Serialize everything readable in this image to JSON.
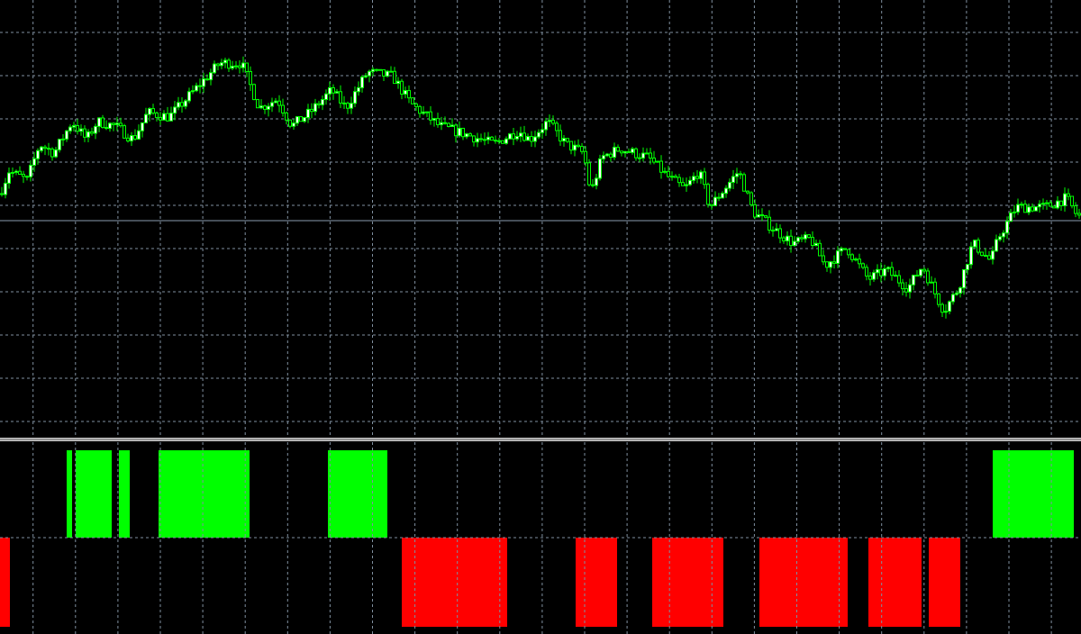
{
  "chart_data": [
    {
      "type": "candlestick",
      "title": "",
      "xlabel": "",
      "ylabel": "",
      "x_unit": "bar index",
      "xlim": [
        0,
        300
      ],
      "ylim": [
        1.1513,
        1.2
      ],
      "grid": true,
      "current_price_line": 1.1755,
      "close_path": [
        [
          0,
          1.1785
        ],
        [
          2.5,
          1.181
        ],
        [
          7.5,
          1.18
        ],
        [
          11,
          1.184
        ],
        [
          15,
          1.183
        ],
        [
          20,
          1.1865
        ],
        [
          24,
          1.1845
        ],
        [
          27,
          1.1865
        ],
        [
          32,
          1.186
        ],
        [
          37,
          1.1845
        ],
        [
          41,
          1.1875
        ],
        [
          47,
          1.187
        ],
        [
          54,
          1.19
        ],
        [
          61,
          1.193
        ],
        [
          67,
          1.193
        ],
        [
          72,
          1.188
        ],
        [
          77,
          1.189
        ],
        [
          81,
          1.186
        ],
        [
          86,
          1.1875
        ],
        [
          92,
          1.19
        ],
        [
          96,
          1.188
        ],
        [
          102,
          1.192
        ],
        [
          109,
          1.1915
        ],
        [
          114,
          1.1885
        ],
        [
          122,
          1.186
        ],
        [
          130,
          1.185
        ],
        [
          137,
          1.184
        ],
        [
          144,
          1.1855
        ],
        [
          147,
          1.1845
        ],
        [
          152,
          1.1865
        ],
        [
          157,
          1.184
        ],
        [
          162,
          1.183
        ],
        [
          164,
          1.1785
        ],
        [
          167,
          1.1825
        ],
        [
          172,
          1.1835
        ],
        [
          180,
          1.1825
        ],
        [
          185,
          1.1805
        ],
        [
          190,
          1.179
        ],
        [
          194,
          1.181
        ],
        [
          197,
          1.177
        ],
        [
          205,
          1.181
        ],
        [
          209,
          1.1765
        ],
        [
          215,
          1.1745
        ],
        [
          220,
          1.173
        ],
        [
          225,
          1.1735
        ],
        [
          229,
          1.1705
        ],
        [
          235,
          1.1725
        ],
        [
          241,
          1.169
        ],
        [
          246,
          1.17
        ],
        [
          252,
          1.168
        ],
        [
          256,
          1.1705
        ],
        [
          260,
          1.167
        ],
        [
          262,
          1.1655
        ],
        [
          266,
          1.168
        ],
        [
          270,
          1.173
        ],
        [
          275,
          1.171
        ],
        [
          277,
          1.1735
        ],
        [
          282,
          1.177
        ],
        [
          290,
          1.177
        ],
        [
          296,
          1.178
        ],
        [
          299,
          1.176
        ]
      ],
      "colors": {
        "background": "#000000",
        "candle": "#00ff00",
        "bull_body": "#ffffff",
        "bear_body": "#000000",
        "grid": "#8090a0",
        "price_line": "#8a9bb0"
      }
    },
    {
      "type": "histogram",
      "title": "",
      "ylim": [
        -1,
        1
      ],
      "grid": true,
      "segments": [
        {
          "from": 18.5,
          "to": 20,
          "value": 1
        },
        {
          "from": 21,
          "to": 31,
          "value": 1
        },
        {
          "from": 33,
          "to": 36,
          "value": 1
        },
        {
          "from": 44,
          "to": 69.25,
          "value": 1
        },
        {
          "from": 91,
          "to": 107.5,
          "value": 1
        },
        {
          "from": 275.5,
          "to": 298,
          "value": 1
        },
        {
          "from": 0,
          "to": 2.75,
          "value": -1
        },
        {
          "from": 111.5,
          "to": 140.75,
          "value": -1
        },
        {
          "from": 159.75,
          "to": 171.25,
          "value": -1
        },
        {
          "from": 181,
          "to": 200.75,
          "value": -1
        },
        {
          "from": 210.75,
          "to": 235.25,
          "value": -1
        },
        {
          "from": 241,
          "to": 255.75,
          "value": -1
        },
        {
          "from": 257.75,
          "to": 266.5,
          "value": -1
        }
      ],
      "colors": {
        "positive": "#00ff00",
        "negative": "#ff0000"
      }
    }
  ]
}
